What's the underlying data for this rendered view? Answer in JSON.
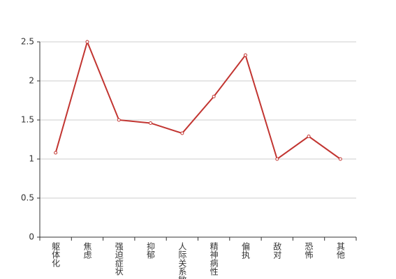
{
  "chart_data": {
    "type": "line",
    "categories": [
      "躯体化",
      "焦虑",
      "强迫症状",
      "抑郁",
      "人际关系敏感",
      "精神病性",
      "偏执",
      "敌对",
      "恐怖",
      "其他"
    ],
    "values": [
      1.08,
      2.5,
      1.5,
      1.46,
      1.33,
      1.8,
      2.33,
      1.0,
      1.29,
      1.0
    ],
    "color": "#c23531",
    "ylim": [
      0,
      2.5
    ],
    "yticks": [
      0,
      0.5,
      1,
      1.5,
      2,
      2.5
    ],
    "grid": true
  }
}
